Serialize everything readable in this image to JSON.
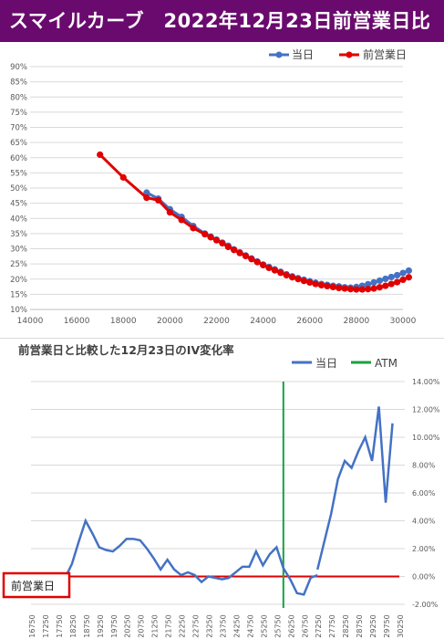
{
  "header": {
    "title": "スマイルカーブ　2022年12月23日前営業日比",
    "bg_color": "#6a0a6e"
  },
  "chart_data": [
    {
      "type": "line",
      "title": "",
      "xlabel": "",
      "ylabel": "",
      "xlim": [
        14000,
        30000
      ],
      "ylim": [
        10,
        90
      ],
      "x_ticks": [
        14000,
        16000,
        18000,
        20000,
        22000,
        24000,
        26000,
        28000,
        30000
      ],
      "y_ticks": [
        10,
        15,
        20,
        25,
        30,
        35,
        40,
        45,
        50,
        55,
        60,
        65,
        70,
        75,
        80,
        85,
        90
      ],
      "y_tick_labels": [
        "10%",
        "15%",
        "20%",
        "25%",
        "30%",
        "35%",
        "40%",
        "45%",
        "50%",
        "55%",
        "60%",
        "65%",
        "70%",
        "75%",
        "80%",
        "85%",
        "90%"
      ],
      "x_tick_labels": [
        "14000",
        "16000",
        "18000",
        "20000",
        "22000",
        "24000",
        "26000",
        "28000",
        "30000"
      ],
      "grid": true,
      "legend_position": "top-right",
      "series": [
        {
          "name": "当日",
          "color": "#4472c4",
          "marker": "circle",
          "x": [
            19000,
            19500,
            20000,
            20500,
            21000,
            21500,
            21750,
            22000,
            22250,
            22500,
            22750,
            23000,
            23250,
            23500,
            23750,
            24000,
            24250,
            24500,
            24750,
            25000,
            25250,
            25500,
            25750,
            26000,
            26250,
            26500,
            26750,
            27000,
            27250,
            27500,
            27750,
            28000,
            28250,
            28500,
            28750,
            29000,
            29250,
            29500,
            29750,
            30000,
            30250
          ],
          "y": [
            48.5,
            46.5,
            43,
            40.5,
            37.5,
            35,
            34,
            33,
            32,
            31,
            29.8,
            28.8,
            27.8,
            26.8,
            25.8,
            24.8,
            24,
            23.2,
            22.4,
            21.6,
            20.9,
            20.3,
            19.8,
            19.3,
            18.8,
            18.4,
            18.1,
            17.8,
            17.6,
            17.3,
            17.2,
            17.4,
            17.8,
            18.3,
            18.9,
            19.5,
            20.1,
            20.7,
            21.3,
            22.0,
            22.8
          ]
        },
        {
          "name": "前営業日",
          "color": "#e00000",
          "marker": "circle",
          "x": [
            17000,
            18000,
            19000,
            19500,
            20000,
            20500,
            21000,
            21500,
            21750,
            22000,
            22250,
            22500,
            22750,
            23000,
            23250,
            23500,
            23750,
            24000,
            24250,
            24500,
            24750,
            25000,
            25250,
            25500,
            25750,
            26000,
            26250,
            26500,
            26750,
            27000,
            27250,
            27500,
            27750,
            28000,
            28250,
            28500,
            28750,
            29000,
            29250,
            29500,
            29750,
            30000,
            30250
          ],
          "y": [
            61,
            53.5,
            46.8,
            46,
            42,
            39.5,
            36.8,
            34.8,
            33.8,
            32.8,
            31.8,
            30.6,
            29.6,
            28.6,
            27.6,
            26.6,
            25.6,
            24.6,
            23.7,
            22.9,
            22.1,
            21.3,
            20.6,
            20,
            19.4,
            18.9,
            18.4,
            18,
            17.7,
            17.4,
            17.1,
            16.9,
            16.7,
            16.6,
            16.6,
            16.7,
            16.9,
            17.3,
            17.8,
            18.4,
            19.0,
            19.8,
            20.6
          ]
        }
      ]
    },
    {
      "type": "line",
      "title": "前営業日と比較した12月23日のIV変化率",
      "xlabel": "",
      "ylabel": "",
      "ylim": [
        -2,
        14
      ],
      "y_ticks": [
        -2,
        0,
        2,
        4,
        6,
        8,
        10,
        12,
        14
      ],
      "y_tick_labels": [
        "-2.00%",
        "0.00%",
        "2.00%",
        "4.00%",
        "6.00%",
        "8.00%",
        "10.00%",
        "12.00%",
        "14.00%"
      ],
      "categories": [
        "16750",
        "17250",
        "17750",
        "18250",
        "18750",
        "19250",
        "19750",
        "20250",
        "20750",
        "21250",
        "21750",
        "22250",
        "22750",
        "23250",
        "23750",
        "24250",
        "24750",
        "25250",
        "25750",
        "26250",
        "26750",
        "27250",
        "27750",
        "28250",
        "28750",
        "29250",
        "29750",
        "30250"
      ],
      "legend_position": "top-right",
      "atm_strike": 26000,
      "series": [
        {
          "name": "当日",
          "color": "#4472c4",
          "x": [
            18000,
            18250,
            18500,
            18750,
            19000,
            19250,
            19500,
            19750,
            20000,
            20250,
            20500,
            20750,
            21000,
            21250,
            21500,
            21750,
            22000,
            22250,
            22500,
            22750,
            23000,
            23250,
            23500,
            23750,
            24000,
            24250,
            24500,
            24750,
            25000,
            25250,
            25500,
            25750,
            26000,
            26250,
            26500,
            26750,
            27000,
            27250,
            27500,
            27750,
            28000,
            28250,
            28500,
            28750,
            29000,
            29250,
            29500,
            29750,
            30000,
            30250
          ],
          "y": [
            -0.1,
            0.9,
            2.5,
            4.0,
            3.1,
            2.1,
            1.9,
            1.8,
            2.2,
            2.7,
            2.7,
            2.6,
            2.0,
            1.3,
            0.5,
            1.2,
            0.5,
            0.1,
            0.3,
            0.1,
            -0.4,
            0.0,
            -0.1,
            -0.2,
            -0.1,
            0.3,
            0.7,
            0.7,
            1.8,
            0.8,
            1.6,
            2.1,
            0.6,
            -0.2,
            -1.2,
            -1.3,
            -0.1,
            0.1,
            null,
            null,
            null,
            null,
            null,
            null,
            null,
            null,
            null,
            null,
            null,
            null
          ]
        }
      ],
      "series_b": {
        "x": [
          27250,
          27500,
          27750,
          28000,
          28250,
          28500,
          28750,
          29000,
          29250,
          29500,
          29750,
          30000,
          30250
        ],
        "y": [
          0.5,
          2.5,
          4.5,
          7.0,
          8.3,
          7.8,
          9.0,
          10.0,
          8.3,
          12.2,
          5.3,
          11.0,
          null
        ]
      },
      "reference_line": {
        "label": "前営業日",
        "value": 0,
        "color": "#e00000"
      },
      "atm_line": {
        "label": "ATM",
        "color": "#1aa040"
      }
    }
  ],
  "chart1_legend": {
    "today": "当日",
    "prev": "前営業日"
  },
  "chart2_legend": {
    "today": "当日",
    "atm": "ATM"
  },
  "chart2_title": "前営業日と比較した12月23日のIV変化率",
  "ref_label": "前営業日"
}
